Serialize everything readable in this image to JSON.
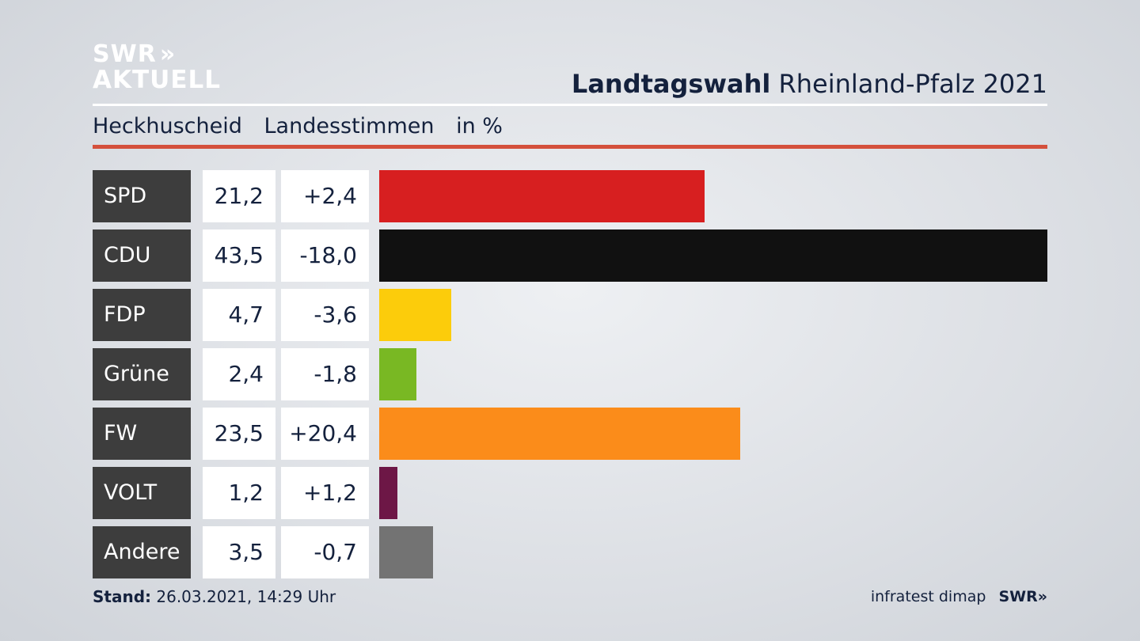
{
  "logo": {
    "line1": "SWR",
    "line2": "AKTUELL",
    "arrows": "»"
  },
  "header": {
    "title_bold": "Landtagswahl",
    "title_rest": "Rheinland-Pfalz 2021"
  },
  "subtitle": {
    "district": "Heckhuscheid",
    "vote_type": "Landesstimmen",
    "unit": "in %"
  },
  "footer": {
    "stand_label": "Stand:",
    "stand_value": "26.03.2021, 14:29 Uhr",
    "source": "infratest dimap",
    "source_logo": "SWR»"
  },
  "colors": {
    "accent_rule": "#d4503c",
    "party_label_bg": "#3d3d3d",
    "background": "#dcdfe4"
  },
  "chart_data": {
    "type": "bar",
    "categories": [
      "SPD",
      "CDU",
      "FDP",
      "Grüne",
      "FW",
      "VOLT",
      "Andere"
    ],
    "values": [
      21.2,
      43.5,
      4.7,
      2.4,
      23.5,
      1.2,
      3.5
    ],
    "values_label": [
      "21,2",
      "43,5",
      "4,7",
      "2,4",
      "23,5",
      "1,2",
      "3,5"
    ],
    "diff": [
      2.4,
      -18.0,
      -3.6,
      -1.8,
      20.4,
      1.2,
      -0.7
    ],
    "diff_label": [
      "+2,4",
      "-18,0",
      "-3,6",
      "-1,8",
      "+20,4",
      "+1,2",
      "-0,7"
    ],
    "colors": [
      "#d71f20",
      "#111111",
      "#fccc0b",
      "#79b823",
      "#fb8c1a",
      "#6d1746",
      "#737373"
    ],
    "orientation": "horizontal",
    "title": "Landtagswahl Rheinland-Pfalz 2021",
    "xlabel": "",
    "ylabel": "",
    "xlim": [
      0,
      43.5
    ],
    "grid": false,
    "legend": "none"
  }
}
